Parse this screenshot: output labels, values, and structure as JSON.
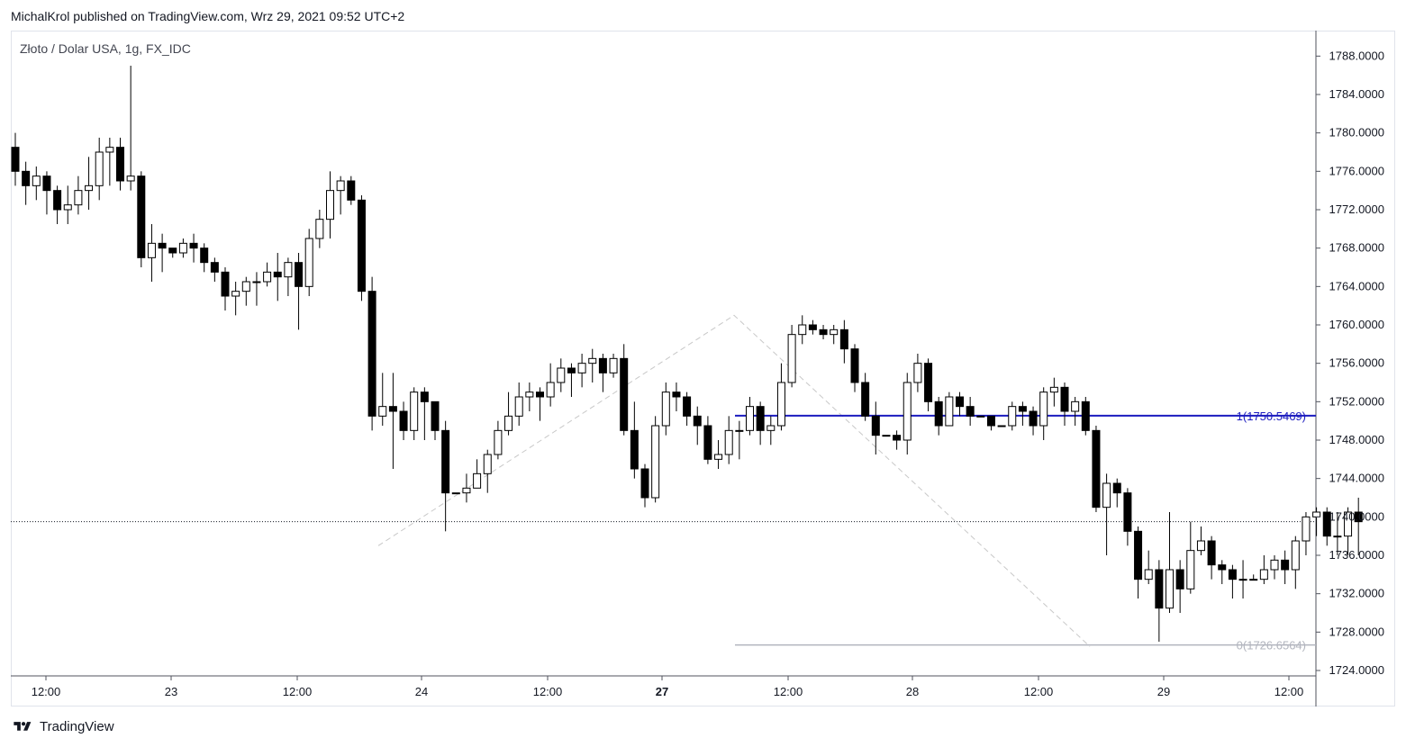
{
  "header": {
    "publisher_line": "MichalKrol published on TradingView.com, Wrz 29, 2021 09:52 UTC+2"
  },
  "symbol_label": "Złoto / Dolar USA, 1g, FX_IDC",
  "footer": {
    "brand": "TradingView",
    "logo_icon": "tradingview-logo-icon"
  },
  "colors": {
    "up_fill": "#ffffff",
    "down_fill": "#000000",
    "candle_stroke": "#000000",
    "fib_line": "#1b1bbf",
    "fib_zero_line": "#b2b5be",
    "zigzag": "#c8c8c8"
  },
  "chart_data": {
    "type": "candlestick",
    "y_range": [
      1724.0,
      1790.0
    ],
    "y_ticks": [
      "1788.0000",
      "1784.0000",
      "1780.0000",
      "1776.0000",
      "1772.0000",
      "1768.0000",
      "1764.0000",
      "1760.0000",
      "1756.0000",
      "1752.0000",
      "1748.0000",
      "1744.0000",
      "1740.0000",
      "1736.0000",
      "1732.0000",
      "1728.0000",
      "1724.0000"
    ],
    "x_labels": [
      {
        "label": "12:00",
        "bold": false
      },
      {
        "label": "23",
        "bold": false
      },
      {
        "label": "12:00",
        "bold": false
      },
      {
        "label": "24",
        "bold": false
      },
      {
        "label": "12:00",
        "bold": false
      },
      {
        "label": "27",
        "bold": true
      },
      {
        "label": "12:00",
        "bold": false
      },
      {
        "label": "28",
        "bold": false
      },
      {
        "label": "12:00",
        "bold": false
      },
      {
        "label": "29",
        "bold": false
      },
      {
        "label": "12:00",
        "bold": false
      }
    ],
    "last_price": 1739.5,
    "fib_levels": [
      {
        "label": "1(1750.5469)",
        "price": 1750.5469
      },
      {
        "label": "0(1726.6564)",
        "price": 1726.6564
      }
    ],
    "candles": [
      [
        1778.5,
        1776.0,
        1780.0,
        1774.5
      ],
      [
        1776.0,
        1774.5,
        1777.0,
        1772.5
      ],
      [
        1774.5,
        1775.5,
        1776.5,
        1773.0
      ],
      [
        1775.5,
        1774.0,
        1776.0,
        1771.5
      ],
      [
        1774.0,
        1772.0,
        1774.5,
        1770.5
      ],
      [
        1772.0,
        1772.5,
        1774.5,
        1770.5
      ],
      [
        1772.5,
        1774.0,
        1775.5,
        1771.5
      ],
      [
        1774.0,
        1774.5,
        1777.5,
        1772.0
      ],
      [
        1774.5,
        1778.0,
        1779.5,
        1773.0
      ],
      [
        1778.0,
        1778.5,
        1779.5,
        1774.5
      ],
      [
        1778.5,
        1775.0,
        1779.5,
        1774.0
      ],
      [
        1775.0,
        1775.5,
        1787.0,
        1774.0
      ],
      [
        1775.5,
        1767.0,
        1776.0,
        1766.0
      ],
      [
        1767.0,
        1768.5,
        1770.5,
        1764.5
      ],
      [
        1768.5,
        1768.0,
        1769.5,
        1765.5
      ],
      [
        1768.0,
        1767.5,
        1768.0,
        1767.0
      ],
      [
        1767.5,
        1768.5,
        1769.0,
        1767.0
      ],
      [
        1768.5,
        1768.0,
        1769.5,
        1766.5
      ],
      [
        1768.0,
        1766.5,
        1768.5,
        1765.5
      ],
      [
        1766.5,
        1765.5,
        1767.0,
        1764.5
      ],
      [
        1765.5,
        1763.0,
        1766.0,
        1761.5
      ],
      [
        1763.0,
        1763.5,
        1764.5,
        1761.0
      ],
      [
        1763.5,
        1764.5,
        1765.0,
        1762.0
      ],
      [
        1764.5,
        1764.5,
        1765.5,
        1762.0
      ],
      [
        1764.5,
        1765.5,
        1766.5,
        1764.0
      ],
      [
        1765.5,
        1765.0,
        1767.5,
        1762.5
      ],
      [
        1765.0,
        1766.5,
        1767.0,
        1763.0
      ],
      [
        1766.5,
        1764.0,
        1767.5,
        1759.5
      ],
      [
        1764.0,
        1769.0,
        1770.0,
        1763.0
      ],
      [
        1769.0,
        1771.0,
        1772.0,
        1768.0
      ],
      [
        1771.0,
        1774.0,
        1776.0,
        1769.0
      ],
      [
        1774.0,
        1775.0,
        1775.5,
        1771.5
      ],
      [
        1775.0,
        1773.0,
        1775.5,
        1772.5
      ],
      [
        1773.0,
        1763.5,
        1773.5,
        1762.5
      ],
      [
        1763.5,
        1750.5,
        1765.0,
        1749.0
      ],
      [
        1750.5,
        1751.5,
        1755.0,
        1749.5
      ],
      [
        1751.5,
        1751.0,
        1755.0,
        1745.0
      ],
      [
        1751.0,
        1749.0,
        1752.0,
        1748.0
      ],
      [
        1749.0,
        1753.0,
        1753.5,
        1748.0
      ],
      [
        1753.0,
        1752.0,
        1753.5,
        1748.0
      ],
      [
        1752.0,
        1749.0,
        1752.0,
        1748.0
      ],
      [
        1749.0,
        1742.5,
        1750.0,
        1738.5
      ],
      [
        1742.5,
        1742.5,
        1742.5,
        1742.5
      ],
      [
        1742.5,
        1743.0,
        1744.5,
        1741.5
      ],
      [
        1743.0,
        1744.5,
        1746.0,
        1743.0
      ],
      [
        1744.5,
        1746.5,
        1747.0,
        1742.5
      ],
      [
        1746.5,
        1749.0,
        1750.0,
        1746.0
      ],
      [
        1749.0,
        1750.5,
        1753.0,
        1748.5
      ],
      [
        1750.5,
        1752.5,
        1754.0,
        1749.5
      ],
      [
        1752.5,
        1753.0,
        1754.0,
        1751.0
      ],
      [
        1753.0,
        1752.5,
        1753.5,
        1750.0
      ],
      [
        1752.5,
        1754.0,
        1756.0,
        1751.5
      ],
      [
        1754.0,
        1755.5,
        1756.5,
        1753.0
      ],
      [
        1755.5,
        1755.0,
        1756.0,
        1752.5
      ],
      [
        1755.0,
        1756.0,
        1757.0,
        1753.5
      ],
      [
        1756.0,
        1756.5,
        1757.5,
        1754.0
      ],
      [
        1756.5,
        1755.0,
        1757.0,
        1753.0
      ],
      [
        1755.0,
        1756.5,
        1757.0,
        1754.5
      ],
      [
        1756.5,
        1749.0,
        1758.0,
        1748.5
      ],
      [
        1749.0,
        1745.0,
        1752.0,
        1744.0
      ],
      [
        1745.0,
        1742.0,
        1745.5,
        1741.0
      ],
      [
        1742.0,
        1749.5,
        1750.5,
        1741.5
      ],
      [
        1749.5,
        1753.0,
        1754.0,
        1748.5
      ],
      [
        1753.0,
        1752.5,
        1754.0,
        1751.0
      ],
      [
        1752.5,
        1750.5,
        1753.0,
        1749.5
      ],
      [
        1750.5,
        1749.5,
        1751.5,
        1747.5
      ],
      [
        1749.5,
        1746.0,
        1750.5,
        1745.5
      ],
      [
        1746.0,
        1746.5,
        1748.0,
        1745.0
      ],
      [
        1746.5,
        1749.0,
        1750.5,
        1745.5
      ],
      [
        1749.0,
        1749.0,
        1750.0,
        1746.0
      ],
      [
        1749.0,
        1751.5,
        1752.5,
        1748.5
      ],
      [
        1751.5,
        1749.0,
        1752.0,
        1747.5
      ],
      [
        1749.0,
        1749.5,
        1750.5,
        1747.5
      ],
      [
        1749.5,
        1754.0,
        1756.0,
        1749.0
      ],
      [
        1754.0,
        1759.0,
        1760.0,
        1753.5
      ],
      [
        1759.0,
        1760.0,
        1761.0,
        1758.0
      ],
      [
        1760.0,
        1759.5,
        1760.5,
        1759.0
      ],
      [
        1759.5,
        1759.0,
        1760.0,
        1758.5
      ],
      [
        1759.0,
        1759.5,
        1760.0,
        1758.0
      ],
      [
        1759.5,
        1757.5,
        1760.5,
        1756.0
      ],
      [
        1757.5,
        1754.0,
        1758.0,
        1753.0
      ],
      [
        1754.0,
        1750.5,
        1755.0,
        1750.0
      ],
      [
        1750.5,
        1748.5,
        1752.0,
        1746.5
      ],
      [
        1748.5,
        1748.5,
        1748.5,
        1748.5
      ],
      [
        1748.5,
        1748.0,
        1749.0,
        1747.0
      ],
      [
        1748.0,
        1754.0,
        1755.0,
        1746.5
      ],
      [
        1754.0,
        1756.0,
        1757.0,
        1753.0
      ],
      [
        1756.0,
        1752.0,
        1756.5,
        1751.0
      ],
      [
        1752.0,
        1749.5,
        1752.5,
        1748.5
      ],
      [
        1749.5,
        1752.5,
        1753.0,
        1749.5
      ],
      [
        1752.5,
        1751.5,
        1753.0,
        1750.5
      ],
      [
        1751.5,
        1750.5,
        1752.5,
        1749.5
      ],
      [
        1750.5,
        1750.5,
        1750.5,
        1750.5
      ],
      [
        1750.5,
        1749.5,
        1750.5,
        1749.0
      ],
      [
        1749.5,
        1749.5,
        1749.5,
        1749.5
      ],
      [
        1749.5,
        1751.5,
        1752.0,
        1749.0
      ],
      [
        1751.5,
        1751.0,
        1752.0,
        1749.5
      ],
      [
        1751.0,
        1749.5,
        1751.5,
        1748.5
      ],
      [
        1749.5,
        1753.0,
        1753.5,
        1748.0
      ],
      [
        1753.0,
        1753.5,
        1754.5,
        1751.5
      ],
      [
        1753.5,
        1751.0,
        1754.0,
        1749.5
      ],
      [
        1751.0,
        1752.0,
        1752.5,
        1749.5
      ],
      [
        1752.0,
        1749.0,
        1752.5,
        1748.5
      ],
      [
        1749.0,
        1741.0,
        1749.5,
        1740.5
      ],
      [
        1741.0,
        1743.5,
        1744.5,
        1736.0
      ],
      [
        1743.5,
        1742.5,
        1744.0,
        1741.0
      ],
      [
        1742.5,
        1738.5,
        1743.0,
        1737.0
      ],
      [
        1738.5,
        1733.5,
        1739.0,
        1731.5
      ],
      [
        1733.5,
        1734.5,
        1736.5,
        1733.0
      ],
      [
        1734.5,
        1730.5,
        1735.5,
        1727.0
      ],
      [
        1730.5,
        1734.5,
        1740.5,
        1730.0
      ],
      [
        1734.5,
        1732.5,
        1735.5,
        1730.0
      ],
      [
        1732.5,
        1736.5,
        1739.5,
        1732.0
      ],
      [
        1736.5,
        1737.5,
        1739.0,
        1736.0
      ],
      [
        1737.5,
        1735.0,
        1738.0,
        1733.5
      ],
      [
        1735.0,
        1734.5,
        1735.5,
        1733.0
      ],
      [
        1734.5,
        1733.5,
        1735.0,
        1731.5
      ],
      [
        1733.5,
        1733.5,
        1735.5,
        1731.5
      ],
      [
        1733.5,
        1733.5,
        1734.0,
        1733.5
      ],
      [
        1733.5,
        1734.5,
        1736.0,
        1733.0
      ],
      [
        1734.5,
        1735.5,
        1736.0,
        1733.5
      ],
      [
        1735.5,
        1734.5,
        1736.5,
        1733.0
      ],
      [
        1734.5,
        1737.5,
        1738.0,
        1732.5
      ],
      [
        1737.5,
        1740.0,
        1740.5,
        1736.0
      ],
      [
        1740.0,
        1740.5,
        1741.0,
        1738.0
      ],
      [
        1740.5,
        1738.0,
        1741.0,
        1737.0
      ],
      [
        1738.0,
        1738.0,
        1740.5,
        1736.0
      ],
      [
        1738.0,
        1740.5,
        1741.0,
        1736.0
      ],
      [
        1740.5,
        1739.5,
        1742.0,
        1736.0
      ]
    ]
  }
}
